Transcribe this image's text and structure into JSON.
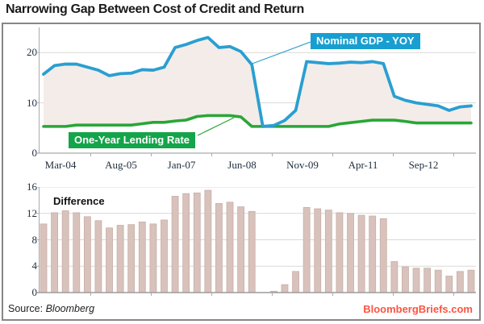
{
  "title": "Narrowing Gap Between Cost of Credit and Return",
  "footer": {
    "source_prefix": "Source:",
    "source_name": "Bloomberg",
    "brand": "BloombergBriefs.com"
  },
  "colors": {
    "gdp_line": "#2a9fd1",
    "gdp_label_bg": "#189fd1",
    "rate_line": "#29a637",
    "rate_label_bg": "#14a44a",
    "area_fill": "#f4ece8",
    "bar_fill": "#d8c2bb",
    "bar_edge": "#c7afa7",
    "grid": "#d9d9d9",
    "axis_line": "#ababab",
    "baseline": "#9c9c9c",
    "tick_text": "#1e2d3d",
    "title_text": "#1b1b1b",
    "brand_text": "#fb5442",
    "border": "#878787"
  },
  "chart_data": [
    {
      "type": "line",
      "title": "",
      "x_tick_labels": [
        "Mar-04",
        "Aug-05",
        "Jan-07",
        "Jun-08",
        "Nov-09",
        "Apr-11",
        "Sep-12"
      ],
      "y_ticks": [
        0,
        10,
        20
      ],
      "ylim": [
        0,
        25
      ],
      "grid": "horizontal",
      "legend_position": "inline-callout-boxes",
      "area_between_series": true,
      "series": [
        {
          "name": "Nominal GDP - YOY",
          "color": "#2a9fd1",
          "values": [
            15.7,
            17.4,
            17.7,
            17.7,
            17.1,
            16.5,
            15.4,
            15.8,
            15.9,
            16.6,
            16.5,
            17.1,
            21.0,
            21.6,
            22.4,
            23.0,
            21.0,
            21.2,
            20.2,
            17.6,
            5.3,
            5.5,
            6.5,
            8.5,
            18.2,
            18.0,
            17.8,
            17.9,
            18.1,
            18.0,
            18.2,
            17.8,
            11.3,
            10.5,
            10.0,
            9.7,
            9.4,
            8.5,
            9.2,
            9.4
          ]
        },
        {
          "name": "One-Year Lending Rate",
          "color": "#29a637",
          "values": [
            5.31,
            5.31,
            5.31,
            5.58,
            5.58,
            5.58,
            5.58,
            5.58,
            5.58,
            5.85,
            6.12,
            6.12,
            6.39,
            6.57,
            7.29,
            7.47,
            7.47,
            7.47,
            7.2,
            5.31,
            5.31,
            5.31,
            5.31,
            5.31,
            5.31,
            5.31,
            5.31,
            5.81,
            6.06,
            6.31,
            6.56,
            6.56,
            6.56,
            6.31,
            6.0,
            6.0,
            6.0,
            6.0,
            6.0,
            6.0
          ]
        }
      ]
    },
    {
      "type": "bar",
      "label": "Difference",
      "y_ticks": [
        0,
        4,
        8,
        12,
        16
      ],
      "ylim": [
        0,
        16
      ],
      "grid": "horizontal",
      "values": [
        10.4,
        12.1,
        12.4,
        12.1,
        11.5,
        10.9,
        9.8,
        10.2,
        10.3,
        10.7,
        10.4,
        11.0,
        14.6,
        15.0,
        15.1,
        15.5,
        13.5,
        13.7,
        13.0,
        12.3,
        0.0,
        0.2,
        1.2,
        3.2,
        12.9,
        12.7,
        12.5,
        12.1,
        12.0,
        11.7,
        11.6,
        11.2,
        4.7,
        3.9,
        3.7,
        3.7,
        3.4,
        2.5,
        3.2,
        3.4
      ]
    }
  ]
}
